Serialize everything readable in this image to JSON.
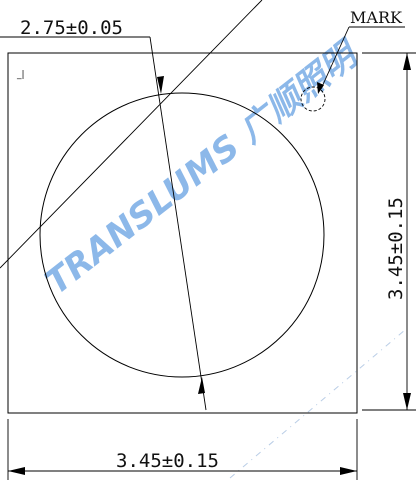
{
  "dimensions": {
    "diameter_label": "2.75±0.05",
    "width_label": "3.45±0.15",
    "height_label": "3.45±0.15"
  },
  "marker": {
    "label": "MARK",
    "pin_mark": "_|"
  },
  "watermark": {
    "text": "TRANSLUMS 广顺照明"
  },
  "colors": {
    "line": "#000000",
    "watermark": "#2f7fd8"
  }
}
